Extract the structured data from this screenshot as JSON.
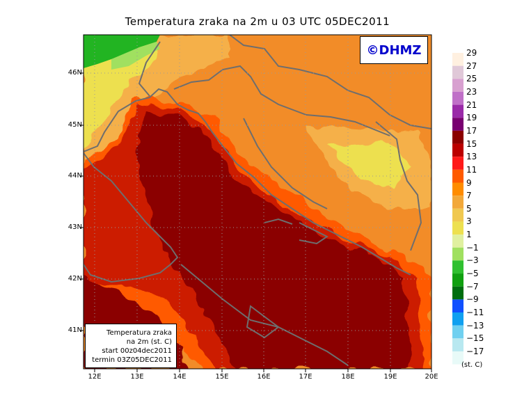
{
  "title": "Temperatura zraka na 2m u 03 UTC 05DEC2011",
  "brand": "©DHMZ",
  "info": {
    "line1": "Temperatura zraka",
    "line2": "na 2m (st. C)",
    "line3": "start 00z04dec2011",
    "line4": "termin 03Z05DEC2011"
  },
  "axes": {
    "lat_labels": [
      "46N",
      "45N",
      "44N",
      "43N",
      "42N",
      "41N"
    ],
    "lon_labels": [
      "12E",
      "13E",
      "14E",
      "15E",
      "16E",
      "17E",
      "18E",
      "19E",
      "20E"
    ]
  },
  "colorbar": {
    "unit": "(st. C)",
    "levels": [
      "29",
      "27",
      "25",
      "23",
      "21",
      "19",
      "17",
      "15",
      "13",
      "11",
      "9",
      "7",
      "5",
      "3",
      "1",
      "−1",
      "−3",
      "−5",
      "−7",
      "−9",
      "−11",
      "−13",
      "−15",
      "−17"
    ],
    "colors": [
      "#fff0e0",
      "#e0c8d8",
      "#d8a0d0",
      "#c070c8",
      "#9a2aa8",
      "#780070",
      "#8b0000",
      "#bb0000",
      "#ff1a1a",
      "#ff5a00",
      "#ff8c00",
      "#f2a83a",
      "#f0c850",
      "#ede050",
      "#e0f0a0",
      "#a0e060",
      "#30c030",
      "#10a010",
      "#006e10",
      "#1050ff",
      "#10a0f0",
      "#70d0f0",
      "#b8e8f0",
      "#e8faf8"
    ]
  },
  "colors": {
    "deep_red": "#8b0000",
    "red": "#cc1a00",
    "orange_red": "#ff5a00",
    "orange": "#f28c28",
    "light_orange": "#f5b04a",
    "yellow": "#ede050",
    "green": "#22b422",
    "coastline": "#6e6e6e"
  }
}
